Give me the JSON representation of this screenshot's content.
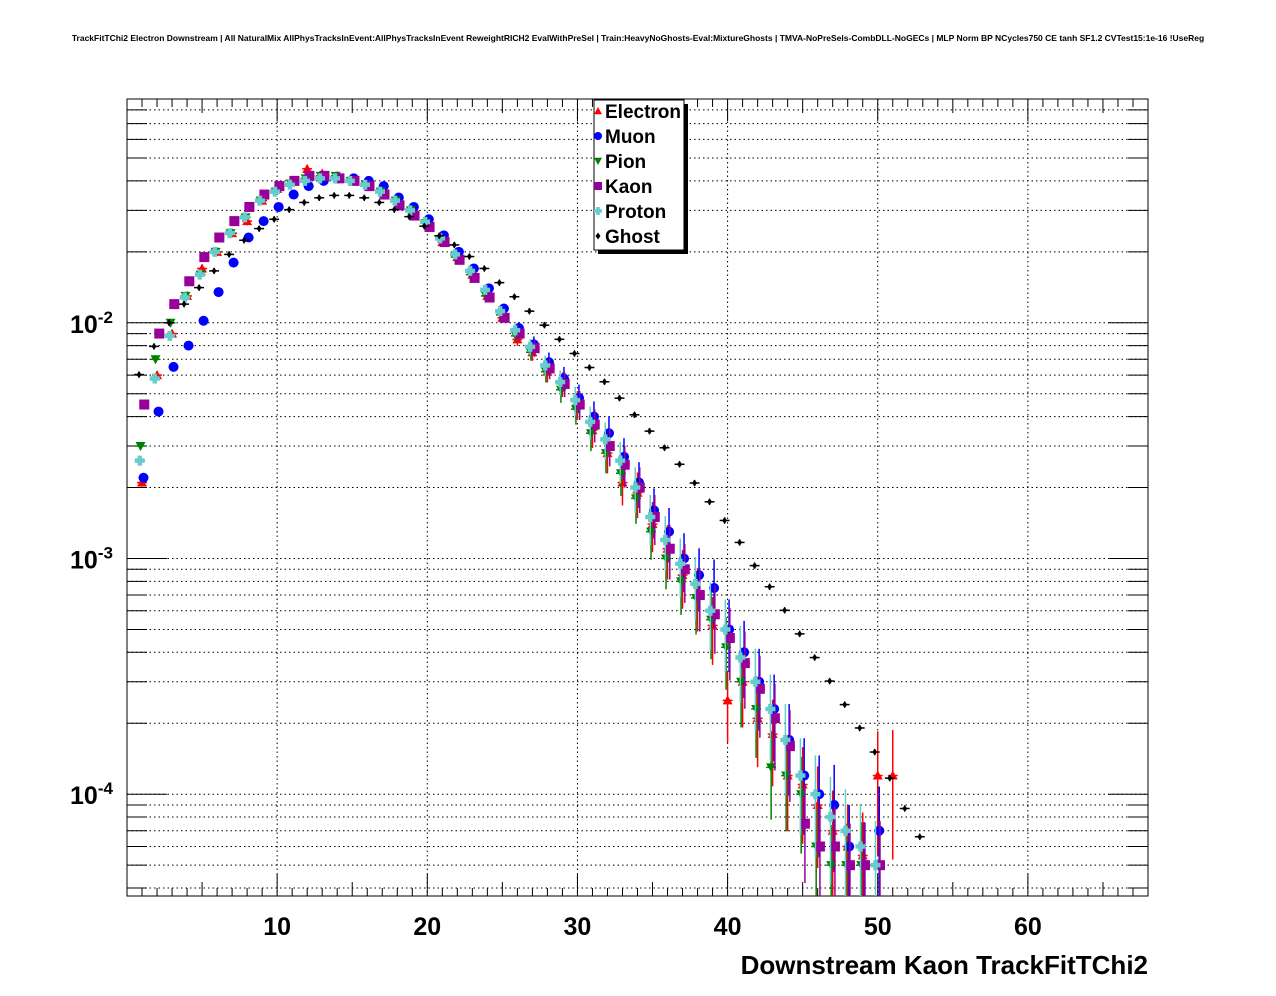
{
  "chart_data": {
    "type": "scatter",
    "title": "TrackFitTChi2 Electron Downstream | All NaturalMix AllPhysTracksInEvent:AllPhysTracksInEvent ReweightRICH2 EvalWithPreSel | Train:HeavyNoGhosts-Eval:MixtureGhosts | TMVA-NoPreSels-CombDLL-NoGECs | MLP Norm BP NCycles750 CE tanh SF1.2 CVTest15:1e-16 !UseReg",
    "xlabel": "Downstream Kaon TrackFitTChi2",
    "ylabel": "",
    "xlim": [
      0,
      68
    ],
    "ylim": [
      3.7e-05,
      0.089
    ],
    "yscale": "log",
    "grid": true,
    "legend_position": "top-center",
    "x_ticks": [
      "10",
      "20",
      "30",
      "40",
      "50",
      "60"
    ],
    "y_ticks": [
      {
        "base": "10",
        "exp": "-2",
        "value": 0.01
      },
      {
        "base": "10",
        "exp": "-3",
        "value": 0.001
      },
      {
        "base": "10",
        "exp": "-4",
        "value": 0.0001
      }
    ],
    "x": [
      1,
      2,
      3,
      4,
      5,
      6,
      7,
      8,
      9,
      10,
      11,
      12,
      13,
      14,
      15,
      16,
      17,
      18,
      19,
      20,
      21,
      22,
      23,
      24,
      25,
      26,
      27,
      28,
      29,
      30,
      31,
      32,
      33,
      34,
      35,
      36,
      37,
      38,
      39,
      40,
      41,
      42,
      43,
      44,
      45,
      46,
      47,
      48,
      49,
      50,
      51,
      52,
      53
    ],
    "series": [
      {
        "name": "Electron",
        "color": "#ff0000",
        "marker": "triangle-up",
        "values": [
          0.0021,
          0.006,
          0.009,
          0.013,
          0.017,
          0.02,
          0.024,
          0.027,
          0.033,
          0.037,
          0.04,
          0.045,
          0.043,
          0.042,
          0.041,
          0.04,
          0.037,
          0.033,
          0.03,
          0.027,
          0.022,
          0.019,
          0.016,
          0.013,
          0.0105,
          0.0085,
          0.0075,
          0.0062,
          0.0055,
          0.0045,
          0.0035,
          0.0028,
          0.0021,
          0.0019,
          0.0014,
          0.0011,
          0.00085,
          0.0007,
          0.00052,
          0.00025,
          0.0003,
          0.00021,
          0.00018,
          0.00012,
          0.00011,
          9e-05,
          7e-05,
          6e-05,
          5.5e-05,
          0.00012,
          0.00012,
          null,
          null
        ]
      },
      {
        "name": "Muon",
        "color": "#0000ff",
        "marker": "circle",
        "values": [
          0.0022,
          0.0042,
          0.0065,
          0.008,
          0.0102,
          0.0135,
          0.018,
          0.023,
          0.027,
          0.031,
          0.035,
          0.038,
          0.04,
          0.041,
          0.041,
          0.04,
          0.038,
          0.034,
          0.031,
          0.0275,
          0.0235,
          0.02,
          0.017,
          0.014,
          0.0115,
          0.0095,
          0.0081,
          0.0068,
          0.0058,
          0.0048,
          0.004,
          0.0034,
          0.0027,
          0.0021,
          0.0016,
          0.0013,
          0.001,
          0.00085,
          0.00075,
          0.0005,
          0.0004,
          0.0003,
          0.00023,
          0.00017,
          0.00012,
          0.0001,
          9e-05,
          6e-05,
          5e-05,
          7e-05,
          null,
          null,
          null
        ]
      },
      {
        "name": "Pion",
        "color": "#008000",
        "marker": "triangle-down",
        "values": [
          0.003,
          0.007,
          0.01,
          0.013,
          0.016,
          0.02,
          0.024,
          0.028,
          0.033,
          0.036,
          0.039,
          0.041,
          0.042,
          0.042,
          0.04,
          0.0385,
          0.036,
          0.033,
          0.03,
          0.0265,
          0.0225,
          0.019,
          0.016,
          0.013,
          0.0108,
          0.0088,
          0.0075,
          0.0062,
          0.0052,
          0.0043,
          0.0034,
          0.0028,
          0.0023,
          0.0018,
          0.0013,
          0.001,
          0.0008,
          0.00068,
          0.00055,
          0.00042,
          0.0003,
          0.00023,
          0.00013,
          0.00012,
          0.0001,
          6e-05,
          5e-05,
          5e-05,
          5e-05,
          null,
          null,
          null,
          null
        ]
      },
      {
        "name": "Kaon",
        "color": "#990099",
        "marker": "square",
        "values": [
          0.0045,
          0.009,
          0.012,
          0.015,
          0.019,
          0.023,
          0.027,
          0.031,
          0.035,
          0.038,
          0.04,
          0.042,
          0.042,
          0.041,
          0.04,
          0.038,
          0.035,
          0.0315,
          0.0285,
          0.0255,
          0.022,
          0.0185,
          0.0155,
          0.0128,
          0.0105,
          0.009,
          0.0078,
          0.0064,
          0.0055,
          0.0045,
          0.0037,
          0.003,
          0.0025,
          0.002,
          0.0015,
          0.0011,
          0.0009,
          0.0007,
          0.00058,
          0.00046,
          0.00036,
          0.00028,
          0.00021,
          0.00016,
          7.5e-05,
          6e-05,
          6e-05,
          5e-05,
          5e-05,
          5e-05,
          null,
          null,
          null
        ]
      },
      {
        "name": "Proton",
        "color": "#66cccc",
        "marker": "cross",
        "values": [
          0.0026,
          0.0058,
          0.0088,
          0.0128,
          0.016,
          0.02,
          0.024,
          0.028,
          0.033,
          0.036,
          0.0385,
          0.04,
          0.041,
          0.041,
          0.04,
          0.0385,
          0.036,
          0.033,
          0.03,
          0.0268,
          0.0228,
          0.0195,
          0.0166,
          0.0138,
          0.0112,
          0.0093,
          0.0079,
          0.0066,
          0.0056,
          0.0047,
          0.0038,
          0.0032,
          0.0026,
          0.002,
          0.0015,
          0.0012,
          0.00095,
          0.00078,
          0.0006,
          0.0005,
          0.00038,
          0.0003,
          0.00023,
          0.00017,
          0.00012,
          0.0001,
          8e-05,
          7e-05,
          6e-05,
          5e-05,
          null,
          null,
          null
        ]
      },
      {
        "name": "Ghost",
        "color": "#000000",
        "marker": "diamond",
        "values": [
          0.00603,
          0.00794,
          0.01,
          0.012,
          0.0141,
          0.0166,
          0.0195,
          0.0224,
          0.0251,
          0.0275,
          0.0302,
          0.0324,
          0.0339,
          0.0347,
          0.0347,
          0.0339,
          0.0324,
          0.0302,
          0.0282,
          0.0257,
          0.0234,
          0.0214,
          0.0191,
          0.017,
          0.0148,
          0.0129,
          0.0112,
          0.00977,
          0.00851,
          0.00741,
          0.00646,
          0.00562,
          0.00479,
          0.00407,
          0.00347,
          0.00295,
          0.00251,
          0.00209,
          0.00174,
          0.00145,
          0.00117,
          0.000933,
          0.000759,
          0.000603,
          0.000479,
          0.00038,
          0.000302,
          0.00024,
          0.000191,
          0.000151,
          0.000117,
          8.7e-05,
          6.6e-05
        ]
      }
    ]
  }
}
